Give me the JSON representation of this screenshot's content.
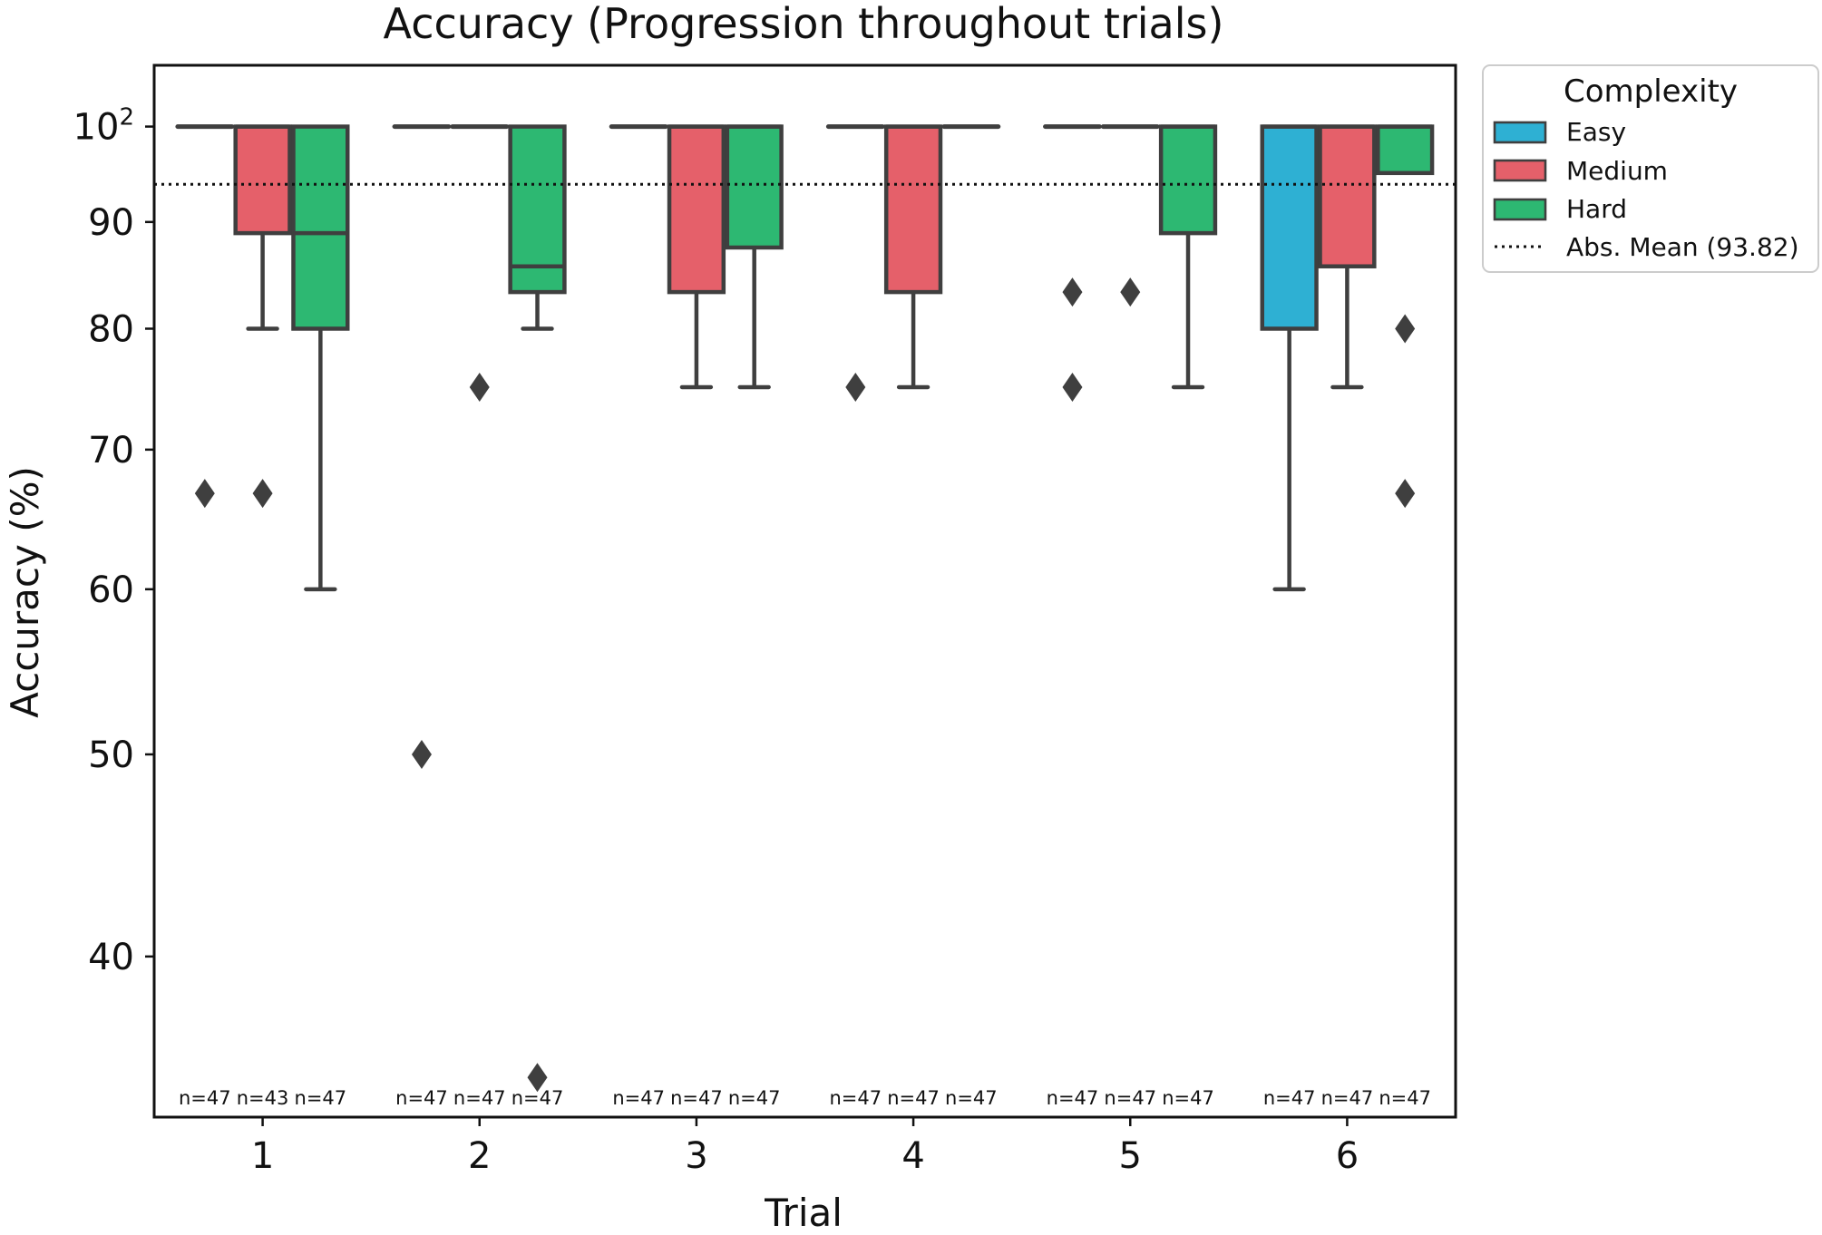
{
  "chart_data": {
    "type": "box",
    "title": "Accuracy (Progression throughout trials)",
    "xlabel": "Trial",
    "ylabel": "Accuracy (%)",
    "yscale": "log",
    "ylim": [
      33.5,
      107
    ],
    "yticks": [
      {
        "value": 40,
        "label": "40"
      },
      {
        "value": 50,
        "label": "50"
      },
      {
        "value": 60,
        "label": "60"
      },
      {
        "value": 70,
        "label": "70"
      },
      {
        "value": 80,
        "label": "80"
      },
      {
        "value": 90,
        "label": "90"
      },
      {
        "value": 100,
        "label": "10",
        "sup": "2"
      }
    ],
    "categories": [
      "1",
      "2",
      "3",
      "4",
      "5",
      "6"
    ],
    "hue_order": [
      "Easy",
      "Medium",
      "Hard"
    ],
    "colors": {
      "Easy": "#2eb0d3",
      "Medium": "#e5606a",
      "Hard": "#2db872"
    },
    "mean_line": {
      "value": 93.82,
      "label": "Abs. Mean (93.82)"
    },
    "legend": {
      "title": "Complexity",
      "position": "outside-right-top",
      "entries": [
        "Easy",
        "Medium",
        "Hard",
        "Abs. Mean (93.82)"
      ]
    },
    "boxes": [
      {
        "trial": "1",
        "group": "Easy",
        "q1": 100,
        "median": 100,
        "q3": 100,
        "whislo": 100,
        "whishi": 100,
        "fliers": [
          66.7
        ],
        "n_label": "n=47"
      },
      {
        "trial": "1",
        "group": "Medium",
        "q1": 88.9,
        "median": 100,
        "q3": 100,
        "whislo": 80,
        "whishi": 100,
        "fliers": [
          66.7
        ],
        "n_label": "n=43"
      },
      {
        "trial": "1",
        "group": "Hard",
        "q1": 80,
        "median": 88.9,
        "q3": 100,
        "whislo": 60,
        "whishi": 100,
        "fliers": [],
        "n_label": "n=47"
      },
      {
        "trial": "2",
        "group": "Easy",
        "q1": 100,
        "median": 100,
        "q3": 100,
        "whislo": 100,
        "whishi": 100,
        "fliers": [
          50
        ],
        "n_label": "n=47"
      },
      {
        "trial": "2",
        "group": "Medium",
        "q1": 100,
        "median": 100,
        "q3": 100,
        "whislo": 100,
        "whishi": 100,
        "fliers": [
          75
        ],
        "n_label": "n=47"
      },
      {
        "trial": "2",
        "group": "Hard",
        "q1": 83.3,
        "median": 85.7,
        "q3": 100,
        "whislo": 80,
        "whishi": 100,
        "fliers": [
          35
        ],
        "n_label": "n=47"
      },
      {
        "trial": "3",
        "group": "Easy",
        "q1": 100,
        "median": 100,
        "q3": 100,
        "whislo": 100,
        "whishi": 100,
        "fliers": [],
        "n_label": "n=47"
      },
      {
        "trial": "3",
        "group": "Medium",
        "q1": 83.3,
        "median": 100,
        "q3": 100,
        "whislo": 75,
        "whishi": 100,
        "fliers": [],
        "n_label": "n=47"
      },
      {
        "trial": "3",
        "group": "Hard",
        "q1": 87.5,
        "median": 100,
        "q3": 100,
        "whislo": 75,
        "whishi": 100,
        "fliers": [],
        "n_label": "n=47"
      },
      {
        "trial": "4",
        "group": "Easy",
        "q1": 100,
        "median": 100,
        "q3": 100,
        "whislo": 100,
        "whishi": 100,
        "fliers": [
          75
        ],
        "n_label": "n=47"
      },
      {
        "trial": "4",
        "group": "Medium",
        "q1": 83.3,
        "median": 100,
        "q3": 100,
        "whislo": 75,
        "whishi": 100,
        "fliers": [],
        "n_label": "n=47"
      },
      {
        "trial": "4",
        "group": "Hard",
        "q1": 100,
        "median": 100,
        "q3": 100,
        "whislo": 100,
        "whishi": 100,
        "fliers": [],
        "n_label": "n=47"
      },
      {
        "trial": "5",
        "group": "Easy",
        "q1": 100,
        "median": 100,
        "q3": 100,
        "whislo": 100,
        "whishi": 100,
        "fliers": [
          83.3,
          75
        ],
        "n_label": "n=47"
      },
      {
        "trial": "5",
        "group": "Medium",
        "q1": 100,
        "median": 100,
        "q3": 100,
        "whislo": 100,
        "whishi": 100,
        "fliers": [
          83.3
        ],
        "n_label": "n=47"
      },
      {
        "trial": "5",
        "group": "Hard",
        "q1": 88.9,
        "median": 100,
        "q3": 100,
        "whislo": 75,
        "whishi": 100,
        "fliers": [],
        "n_label": "n=47"
      },
      {
        "trial": "6",
        "group": "Easy",
        "q1": 80,
        "median": 100,
        "q3": 100,
        "whislo": 60,
        "whishi": 100,
        "fliers": [],
        "n_label": "n=47"
      },
      {
        "trial": "6",
        "group": "Medium",
        "q1": 85.7,
        "median": 100,
        "q3": 100,
        "whislo": 75,
        "whishi": 100,
        "fliers": [],
        "n_label": "n=47"
      },
      {
        "trial": "6",
        "group": "Hard",
        "q1": 95,
        "median": 100,
        "q3": 100,
        "whislo": 95,
        "whishi": 100,
        "fliers": [
          80,
          66.7
        ],
        "n_label": "n=47"
      }
    ]
  }
}
